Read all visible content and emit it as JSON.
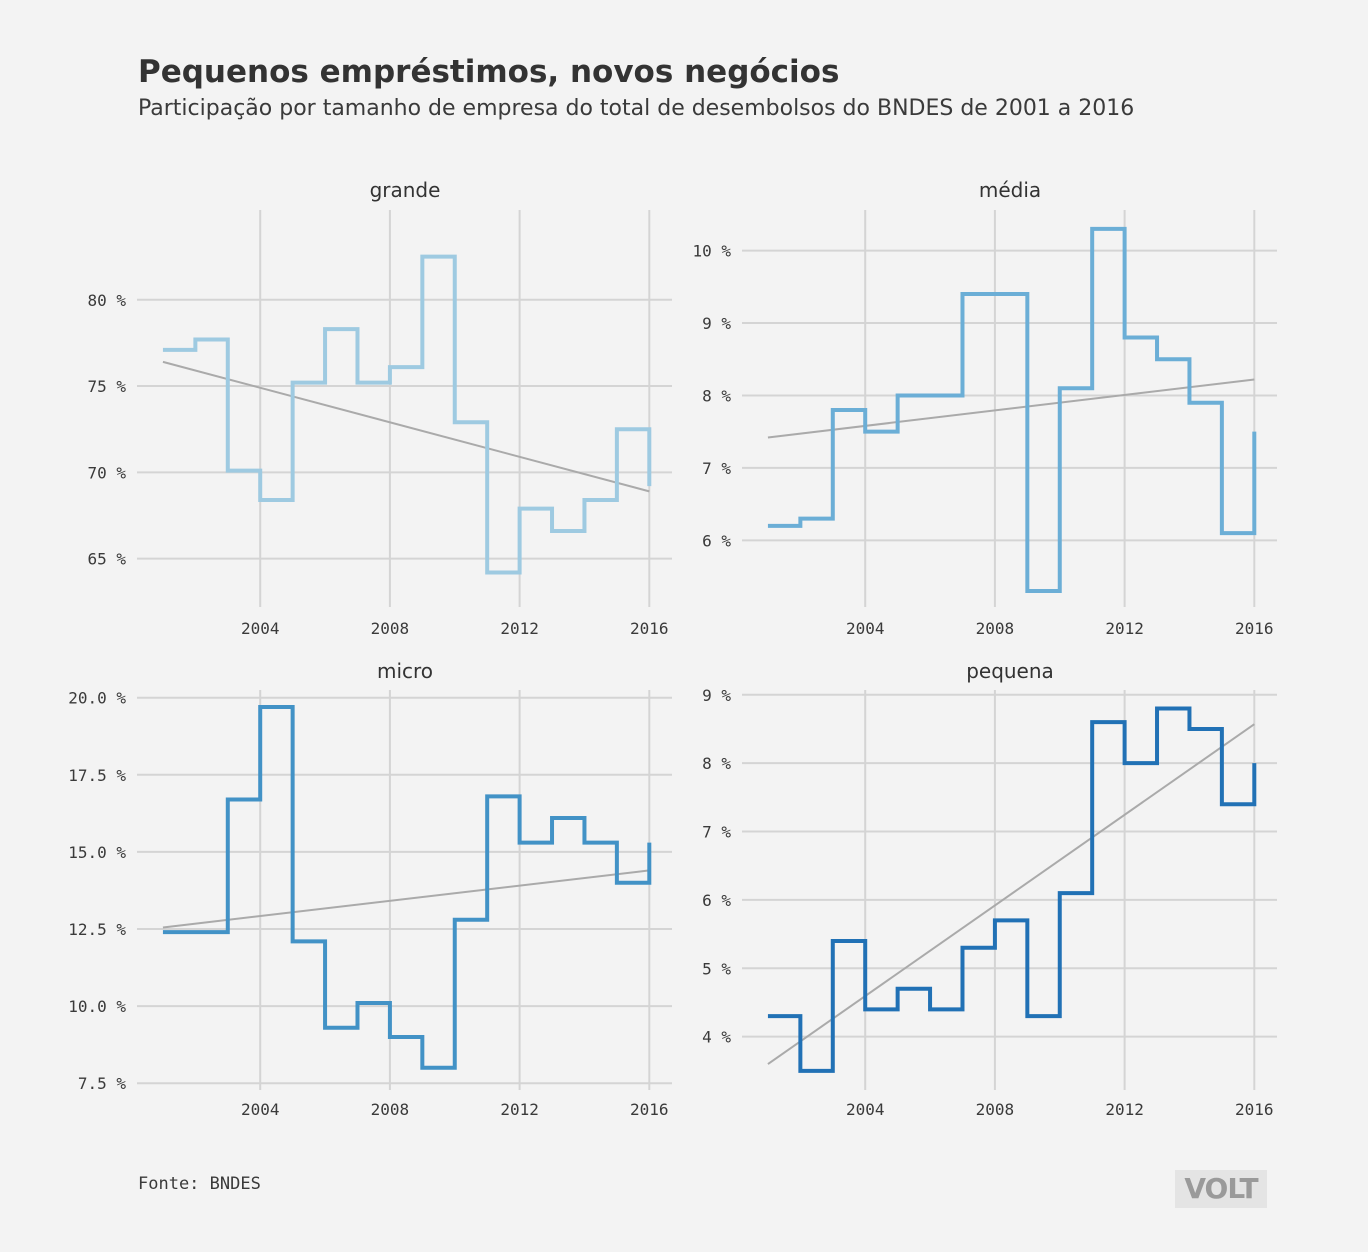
{
  "title": "Pequenos empréstimos, novos negócios",
  "subtitle": "Participação por tamanho de empresa do total de desembolsos do BNDES de 2001 a 2016",
  "source": "Fonte: BNDES",
  "logo": "VOLT",
  "colors": {
    "background": "#f3f3f3",
    "grid": "#d4d4d4",
    "trend": "#aaaaaa",
    "grande": "#9ecae1",
    "media": "#6baed6",
    "micro": "#4292c6",
    "pequena": "#2171b5"
  },
  "chart_data": [
    {
      "type": "line",
      "step": true,
      "title": "grande",
      "x": [
        2001,
        2002,
        2003,
        2004,
        2005,
        2006,
        2007,
        2008,
        2009,
        2010,
        2011,
        2012,
        2013,
        2014,
        2015,
        2016
      ],
      "values": [
        77.1,
        77.7,
        70.1,
        68.4,
        75.2,
        78.3,
        75.2,
        76.1,
        82.5,
        72.9,
        64.2,
        67.9,
        66.6,
        68.4,
        72.5,
        69.2
      ],
      "trend": [
        76.4,
        68.9
      ],
      "xlim": [
        2000.2,
        2016.7
      ],
      "ylim": [
        62.2,
        85.2
      ],
      "xticks": [
        2004,
        2008,
        2012,
        2016
      ],
      "xtick_labels": [
        "2004",
        "2008",
        "2012",
        "2016"
      ],
      "yticks": [
        65,
        70,
        75,
        80
      ],
      "ytick_labels": [
        "65 %",
        "70 %",
        "75 %",
        "80 %"
      ]
    },
    {
      "type": "line",
      "step": true,
      "title": "média",
      "x": [
        2001,
        2002,
        2003,
        2004,
        2005,
        2006,
        2007,
        2008,
        2009,
        2010,
        2011,
        2012,
        2013,
        2014,
        2015,
        2016
      ],
      "values": [
        6.2,
        6.3,
        7.8,
        7.5,
        8.0,
        8.0,
        9.4,
        9.4,
        5.3,
        8.1,
        10.3,
        8.8,
        8.5,
        7.9,
        6.1,
        7.5
      ],
      "trend": [
        7.42,
        8.22
      ],
      "xlim": [
        2000.2,
        2016.7
      ],
      "ylim": [
        5.08,
        10.56
      ],
      "xticks": [
        2004,
        2008,
        2012,
        2016
      ],
      "xtick_labels": [
        "2004",
        "2008",
        "2012",
        "2016"
      ],
      "yticks": [
        6,
        7,
        8,
        9,
        10
      ],
      "ytick_labels": [
        "6 %",
        "7 %",
        "8 %",
        "9 %",
        "10 %"
      ]
    },
    {
      "type": "line",
      "step": true,
      "title": "micro",
      "x": [
        2001,
        2002,
        2003,
        2004,
        2005,
        2006,
        2007,
        2008,
        2009,
        2010,
        2011,
        2012,
        2013,
        2014,
        2015,
        2016
      ],
      "values": [
        12.4,
        12.4,
        16.7,
        19.7,
        12.1,
        9.3,
        10.1,
        9.0,
        8.0,
        12.8,
        16.8,
        15.3,
        16.1,
        15.3,
        14.0,
        15.3
      ],
      "trend": [
        12.55,
        14.4
      ],
      "xlim": [
        2000.2,
        2016.7
      ],
      "ylim": [
        7.28,
        20.25
      ],
      "xticks": [
        2004,
        2008,
        2012,
        2016
      ],
      "xtick_labels": [
        "2004",
        "2008",
        "2012",
        "2016"
      ],
      "yticks": [
        7.5,
        10.0,
        12.5,
        15.0,
        17.5,
        20.0
      ],
      "ytick_labels": [
        "7.5 %",
        "10.0 %",
        "12.5 %",
        "15.0 %",
        "17.5 %",
        "20.0 %"
      ]
    },
    {
      "type": "line",
      "step": true,
      "title": "pequena",
      "x": [
        2001,
        2002,
        2003,
        2004,
        2005,
        2006,
        2007,
        2008,
        2009,
        2010,
        2011,
        2012,
        2013,
        2014,
        2015,
        2016
      ],
      "values": [
        4.3,
        3.5,
        5.4,
        4.4,
        4.7,
        4.4,
        5.3,
        5.7,
        4.3,
        6.1,
        8.6,
        8.0,
        8.8,
        8.5,
        7.4,
        8.0
      ],
      "trend": [
        3.6,
        8.57
      ],
      "xlim": [
        2000.2,
        2016.7
      ],
      "ylim": [
        3.22,
        9.07
      ],
      "xticks": [
        2004,
        2008,
        2012,
        2016
      ],
      "xtick_labels": [
        "2004",
        "2008",
        "2012",
        "2016"
      ],
      "yticks": [
        4,
        5,
        6,
        7,
        8,
        9
      ],
      "ytick_labels": [
        "4 %",
        "5 %",
        "6 %",
        "7 %",
        "8 %",
        "9 %"
      ]
    }
  ]
}
